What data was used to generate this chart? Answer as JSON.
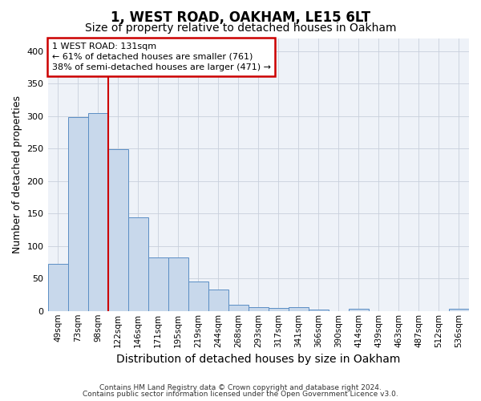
{
  "title1": "1, WEST ROAD, OAKHAM, LE15 6LT",
  "title2": "Size of property relative to detached houses in Oakham",
  "xlabel": "Distribution of detached houses by size in Oakham",
  "ylabel": "Number of detached properties",
  "footnote1": "Contains HM Land Registry data © Crown copyright and database right 2024.",
  "footnote2": "Contains public sector information licensed under the Open Government Licence v3.0.",
  "categories": [
    "49sqm",
    "73sqm",
    "98sqm",
    "122sqm",
    "146sqm",
    "171sqm",
    "195sqm",
    "219sqm",
    "244sqm",
    "268sqm",
    "293sqm",
    "317sqm",
    "341sqm",
    "366sqm",
    "390sqm",
    "414sqm",
    "439sqm",
    "463sqm",
    "487sqm",
    "512sqm",
    "536sqm"
  ],
  "values": [
    72,
    299,
    305,
    249,
    144,
    83,
    83,
    45,
    33,
    9,
    6,
    5,
    6,
    2,
    0,
    3,
    0,
    0,
    0,
    0,
    3
  ],
  "bar_color": "#c8d8eb",
  "bar_edge_color": "#5b8ec4",
  "red_line_color": "#cc0000",
  "annotation_text": "1 WEST ROAD: 131sqm\n← 61% of detached houses are smaller (761)\n38% of semi-detached houses are larger (471) →",
  "annotation_box_color": "white",
  "annotation_box_edge": "#cc0000",
  "ylim": [
    0,
    420
  ],
  "yticks": [
    0,
    50,
    100,
    150,
    200,
    250,
    300,
    350,
    400
  ],
  "grid_color": "#c8d0dc",
  "background_color": "#eef2f8",
  "title1_fontsize": 12,
  "title2_fontsize": 10,
  "xlabel_fontsize": 10,
  "ylabel_fontsize": 9
}
